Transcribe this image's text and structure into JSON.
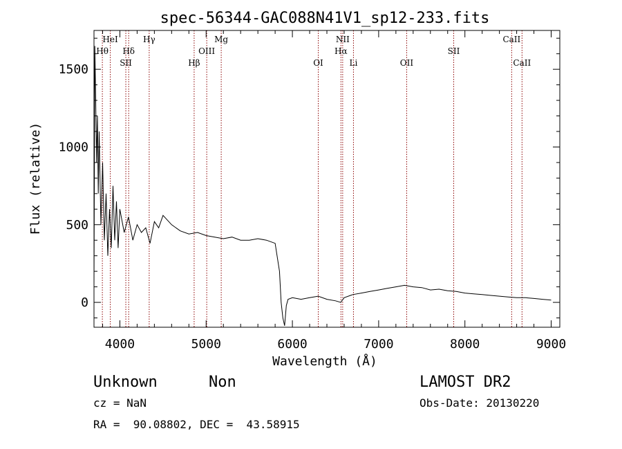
{
  "chart_data": {
    "type": "line",
    "title": "spec-56344-GAC088N41V1_sp12-233.fits",
    "xlabel": "Wavelength (Å)",
    "ylabel": "Flux (relative)",
    "xlim": [
      3700,
      9100
    ],
    "ylim": [
      -160,
      1750
    ],
    "x_ticks": [
      4000,
      5000,
      6000,
      7000,
      8000,
      9000
    ],
    "y_ticks": [
      0,
      500,
      1000,
      1500
    ],
    "grid": false,
    "line_color": "#000000",
    "marker_color": "#8b0000",
    "series": [
      {
        "x": [
          3700,
          3710,
          3720,
          3730,
          3740,
          3750,
          3760,
          3780,
          3800,
          3820,
          3840,
          3860,
          3880,
          3900,
          3920,
          3940,
          3960,
          3980,
          4000,
          4050,
          4100,
          4150,
          4200,
          4250,
          4300,
          4350,
          4400,
          4450,
          4500,
          4600,
          4700,
          4800,
          4900,
          5000,
          5100,
          5200,
          5300,
          5400,
          5500,
          5600,
          5700,
          5800,
          5850,
          5870,
          5890,
          5910,
          5930,
          5950,
          6000,
          6100,
          6200,
          6300,
          6400,
          6500,
          6560,
          6600,
          6700,
          6800,
          6900,
          7000,
          7100,
          7200,
          7300,
          7400,
          7500,
          7600,
          7700,
          7800,
          7900,
          8000,
          8100,
          8200,
          8300,
          8400,
          8500,
          8600,
          8700,
          8800,
          8900,
          9000
        ],
        "y": [
          100,
          1650,
          1300,
          900,
          1200,
          700,
          1100,
          500,
          900,
          400,
          700,
          300,
          600,
          350,
          750,
          400,
          650,
          350,
          600,
          450,
          550,
          400,
          500,
          450,
          480,
          380,
          520,
          480,
          560,
          500,
          460,
          440,
          450,
          430,
          420,
          410,
          420,
          400,
          400,
          410,
          400,
          380,
          200,
          0,
          -100,
          -150,
          -20,
          20,
          30,
          20,
          30,
          40,
          20,
          10,
          0,
          30,
          50,
          60,
          70,
          80,
          90,
          100,
          110,
          100,
          95,
          80,
          85,
          75,
          70,
          60,
          55,
          50,
          45,
          40,
          35,
          30,
          30,
          25,
          20,
          15
        ]
      }
    ],
    "lines": [
      {
        "label": "Hθ",
        "x": 3797,
        "row": 2
      },
      {
        "label": "HeI",
        "x": 3889,
        "row": 1
      },
      {
        "label": "SII",
        "x": 4069,
        "row": 3
      },
      {
        "label": "Hδ",
        "x": 4102,
        "row": 2
      },
      {
        "label": "Hγ",
        "x": 4340,
        "row": 1
      },
      {
        "label": "Hβ",
        "x": 4861,
        "row": 3
      },
      {
        "label": "OIII",
        "x": 5007,
        "row": 2
      },
      {
        "label": "Mg",
        "x": 5175,
        "row": 1
      },
      {
        "label": "OI",
        "x": 6300,
        "row": 3
      },
      {
        "label": "NII",
        "x": 6583,
        "row": 1
      },
      {
        "label": "Hα",
        "x": 6563,
        "row": 2
      },
      {
        "label": "Li",
        "x": 6708,
        "row": 3
      },
      {
        "label": "OII",
        "x": 7325,
        "row": 3
      },
      {
        "label": "SII",
        "x": 7870,
        "row": 2
      },
      {
        "label": "CaII",
        "x": 8542,
        "row": 1
      },
      {
        "label": "CaII",
        "x": 8662,
        "row": 3
      }
    ]
  },
  "info": {
    "class": "Unknown",
    "subclass": "Non",
    "survey": "LAMOST DR2",
    "cz": "cz = NaN",
    "obs_date": "Obs-Date: 20130220",
    "radec": "RA =  90.08802, DEC =  43.58915"
  }
}
